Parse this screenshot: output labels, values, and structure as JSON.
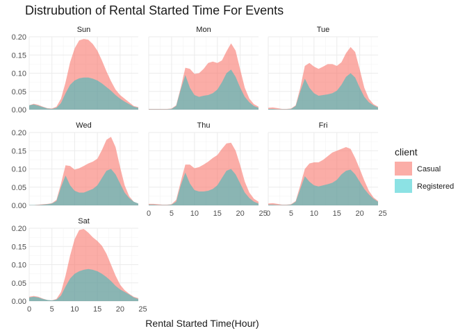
{
  "chart_data": {
    "type": "area",
    "title": "Distrubution of Rental Started Time For Events",
    "xlabel": "Rental Started Time(Hour)",
    "ylabel": "",
    "xlim": [
      0,
      24
    ],
    "ylim": [
      0,
      0.2
    ],
    "x_ticks": [
      "0",
      "5",
      "10",
      "15",
      "20",
      "25"
    ],
    "y_ticks": [
      "0.00",
      "0.05",
      "0.10",
      "0.15",
      "0.20"
    ],
    "grid": true,
    "legend": {
      "title": "client",
      "position": "right",
      "entries": [
        {
          "label": "Casual",
          "color": "#f8766d"
        },
        {
          "label": "Registered",
          "color": "#00bfc4"
        }
      ]
    },
    "x": [
      0,
      1,
      2,
      3,
      4,
      5,
      6,
      7,
      8,
      9,
      10,
      11,
      12,
      13,
      14,
      15,
      16,
      17,
      18,
      19,
      20,
      21,
      22,
      23,
      24
    ],
    "panels": [
      {
        "label": "Sun",
        "series": [
          {
            "name": "Casual",
            "values": [
              0.012,
              0.016,
              0.013,
              0.008,
              0.004,
              0.003,
              0.008,
              0.03,
              0.075,
              0.13,
              0.168,
              0.19,
              0.194,
              0.192,
              0.18,
              0.162,
              0.135,
              0.105,
              0.078,
              0.055,
              0.04,
              0.03,
              0.02,
              0.01,
              0.007
            ]
          },
          {
            "name": "Registered",
            "values": [
              0.012,
              0.014,
              0.011,
              0.007,
              0.003,
              0.002,
              0.005,
              0.018,
              0.045,
              0.068,
              0.08,
              0.086,
              0.088,
              0.088,
              0.085,
              0.08,
              0.072,
              0.062,
              0.052,
              0.04,
              0.03,
              0.022,
              0.015,
              0.008,
              0.005
            ]
          }
        ]
      },
      {
        "label": "Mon",
        "series": [
          {
            "name": "Casual",
            "values": [
              0.002,
              0.002,
              0.002,
              0.002,
              0.002,
              0.003,
              0.012,
              0.06,
              0.115,
              0.112,
              0.098,
              0.1,
              0.112,
              0.128,
              0.132,
              0.128,
              0.135,
              0.16,
              0.182,
              0.162,
              0.11,
              0.06,
              0.03,
              0.015,
              0.008
            ]
          },
          {
            "name": "Registered",
            "values": [
              0.001,
              0.001,
              0.001,
              0.001,
              0.001,
              0.002,
              0.01,
              0.055,
              0.095,
              0.06,
              0.04,
              0.035,
              0.038,
              0.04,
              0.045,
              0.055,
              0.075,
              0.1,
              0.11,
              0.09,
              0.06,
              0.035,
              0.02,
              0.01,
              0.005
            ]
          }
        ]
      },
      {
        "label": "Tue",
        "series": [
          {
            "name": "Casual",
            "values": [
              0.005,
              0.006,
              0.004,
              0.002,
              0.002,
              0.003,
              0.012,
              0.06,
              0.12,
              0.128,
              0.118,
              0.112,
              0.118,
              0.125,
              0.125,
              0.12,
              0.13,
              0.155,
              0.172,
              0.158,
              0.11,
              0.06,
              0.03,
              0.015,
              0.008
            ]
          },
          {
            "name": "Registered",
            "values": [
              0.002,
              0.002,
              0.001,
              0.001,
              0.001,
              0.002,
              0.01,
              0.05,
              0.085,
              0.06,
              0.045,
              0.038,
              0.04,
              0.042,
              0.045,
              0.052,
              0.068,
              0.09,
              0.1,
              0.088,
              0.06,
              0.035,
              0.02,
              0.012,
              0.006
            ]
          }
        ]
      },
      {
        "label": "Wed",
        "series": [
          {
            "name": "Casual",
            "values": [
              0.001,
              0.001,
              0.002,
              0.003,
              0.004,
              0.006,
              0.015,
              0.06,
              0.11,
              0.108,
              0.098,
              0.102,
              0.108,
              0.115,
              0.12,
              0.128,
              0.152,
              0.18,
              0.188,
              0.16,
              0.105,
              0.055,
              0.025,
              0.01,
              0.005
            ]
          },
          {
            "name": "Registered",
            "values": [
              0.001,
              0.001,
              0.001,
              0.002,
              0.003,
              0.005,
              0.012,
              0.05,
              0.082,
              0.055,
              0.04,
              0.035,
              0.035,
              0.04,
              0.045,
              0.055,
              0.075,
              0.095,
              0.1,
              0.085,
              0.06,
              0.035,
              0.02,
              0.01,
              0.005
            ]
          }
        ]
      },
      {
        "label": "Thu",
        "series": [
          {
            "name": "Casual",
            "values": [
              0.004,
              0.004,
              0.003,
              0.002,
              0.002,
              0.003,
              0.015,
              0.065,
              0.112,
              0.112,
              0.102,
              0.105,
              0.112,
              0.12,
              0.13,
              0.138,
              0.155,
              0.17,
              0.172,
              0.15,
              0.11,
              0.065,
              0.035,
              0.018,
              0.01
            ]
          },
          {
            "name": "Registered",
            "values": [
              0.002,
              0.002,
              0.001,
              0.001,
              0.001,
              0.002,
              0.01,
              0.055,
              0.09,
              0.06,
              0.042,
              0.038,
              0.038,
              0.04,
              0.045,
              0.055,
              0.075,
              0.095,
              0.1,
              0.085,
              0.06,
              0.035,
              0.02,
              0.01,
              0.005
            ]
          }
        ]
      },
      {
        "label": "Fri",
        "series": [
          {
            "name": "Casual",
            "values": [
              0.005,
              0.006,
              0.004,
              0.002,
              0.002,
              0.003,
              0.012,
              0.055,
              0.1,
              0.115,
              0.118,
              0.118,
              0.125,
              0.135,
              0.145,
              0.15,
              0.155,
              0.16,
              0.155,
              0.13,
              0.1,
              0.068,
              0.04,
              0.022,
              0.012
            ]
          },
          {
            "name": "Registered",
            "values": [
              0.002,
              0.002,
              0.001,
              0.001,
              0.001,
              0.002,
              0.01,
              0.045,
              0.08,
              0.065,
              0.055,
              0.052,
              0.055,
              0.058,
              0.062,
              0.07,
              0.085,
              0.095,
              0.098,
              0.085,
              0.065,
              0.045,
              0.03,
              0.018,
              0.01
            ]
          }
        ]
      },
      {
        "label": "Sat",
        "series": [
          {
            "name": "Casual",
            "values": [
              0.012,
              0.014,
              0.012,
              0.007,
              0.003,
              0.002,
              0.006,
              0.025,
              0.07,
              0.125,
              0.17,
              0.195,
              0.198,
              0.188,
              0.175,
              0.165,
              0.152,
              0.13,
              0.1,
              0.07,
              0.045,
              0.03,
              0.02,
              0.012,
              0.008
            ]
          },
          {
            "name": "Registered",
            "values": [
              0.01,
              0.012,
              0.01,
              0.006,
              0.003,
              0.002,
              0.004,
              0.015,
              0.04,
              0.062,
              0.075,
              0.082,
              0.086,
              0.088,
              0.086,
              0.082,
              0.075,
              0.066,
              0.055,
              0.042,
              0.032,
              0.025,
              0.018,
              0.01,
              0.006
            ]
          }
        ]
      }
    ]
  }
}
